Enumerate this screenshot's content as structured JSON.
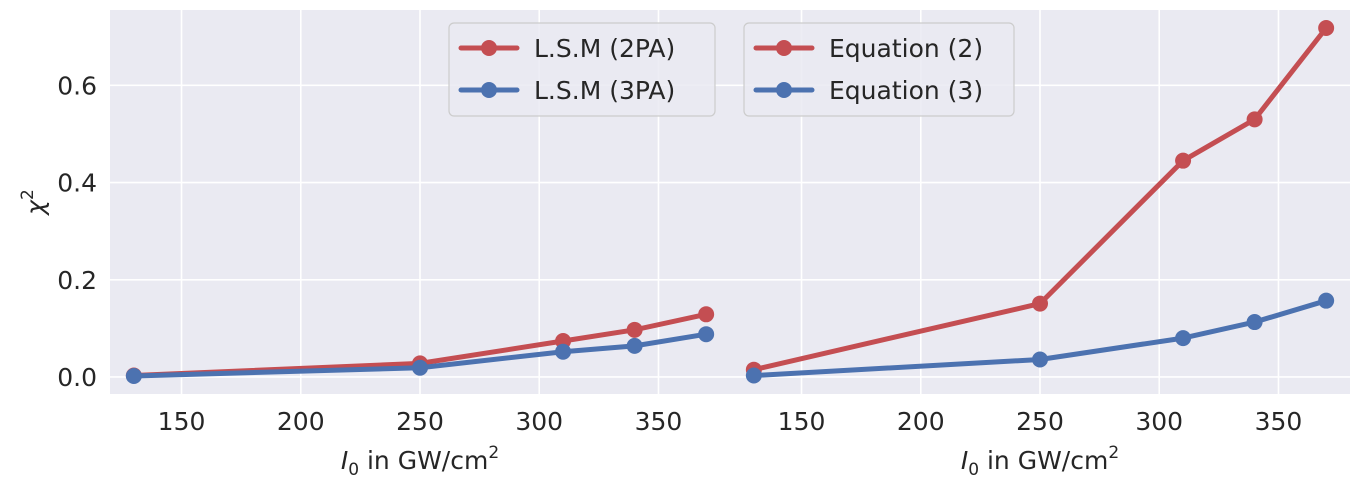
{
  "colors": {
    "background": "#eaeaf2",
    "grid": "#ffffff",
    "red": "#c44e52",
    "blue": "#4c72b0",
    "text": "#262626"
  },
  "axes": {
    "ylabel": "χ",
    "ylabel_sup": "2",
    "xlabel_italic": "I",
    "xlabel_sub": "0",
    "xlabel_text": " in GW/cm",
    "xlabel_sup": "2"
  },
  "chart_data": [
    {
      "type": "line",
      "xlim": [
        120,
        380
      ],
      "ylim": [
        -0.035,
        0.755
      ],
      "xticks": [
        150,
        200,
        250,
        300,
        350
      ],
      "yticks": [
        0.0,
        0.2,
        0.4,
        0.6
      ],
      "ytick_labels": [
        "0.0",
        "0.2",
        "0.4",
        "0.6"
      ],
      "legend_position": "upper-center",
      "grid": true,
      "x": [
        130,
        250,
        310,
        340,
        370
      ],
      "series": [
        {
          "name": "L.S.M (2PA)",
          "color": "#c44e52",
          "values": [
            0.003,
            0.028,
            0.074,
            0.097,
            0.129
          ]
        },
        {
          "name": "L.S.M (3PA)",
          "color": "#4c72b0",
          "values": [
            0.002,
            0.019,
            0.052,
            0.064,
            0.088
          ]
        }
      ]
    },
    {
      "type": "line",
      "xlim": [
        120,
        380
      ],
      "ylim": [
        -0.035,
        0.755
      ],
      "xticks": [
        150,
        200,
        250,
        300,
        350
      ],
      "legend_position": "upper-left",
      "grid": true,
      "x": [
        130,
        250,
        310,
        340,
        370
      ],
      "series": [
        {
          "name": "Equation (2)",
          "color": "#c44e52",
          "values": [
            0.015,
            0.151,
            0.445,
            0.53,
            0.718
          ]
        },
        {
          "name": "Equation (3)",
          "color": "#4c72b0",
          "values": [
            0.003,
            0.036,
            0.08,
            0.113,
            0.157
          ]
        }
      ]
    }
  ]
}
